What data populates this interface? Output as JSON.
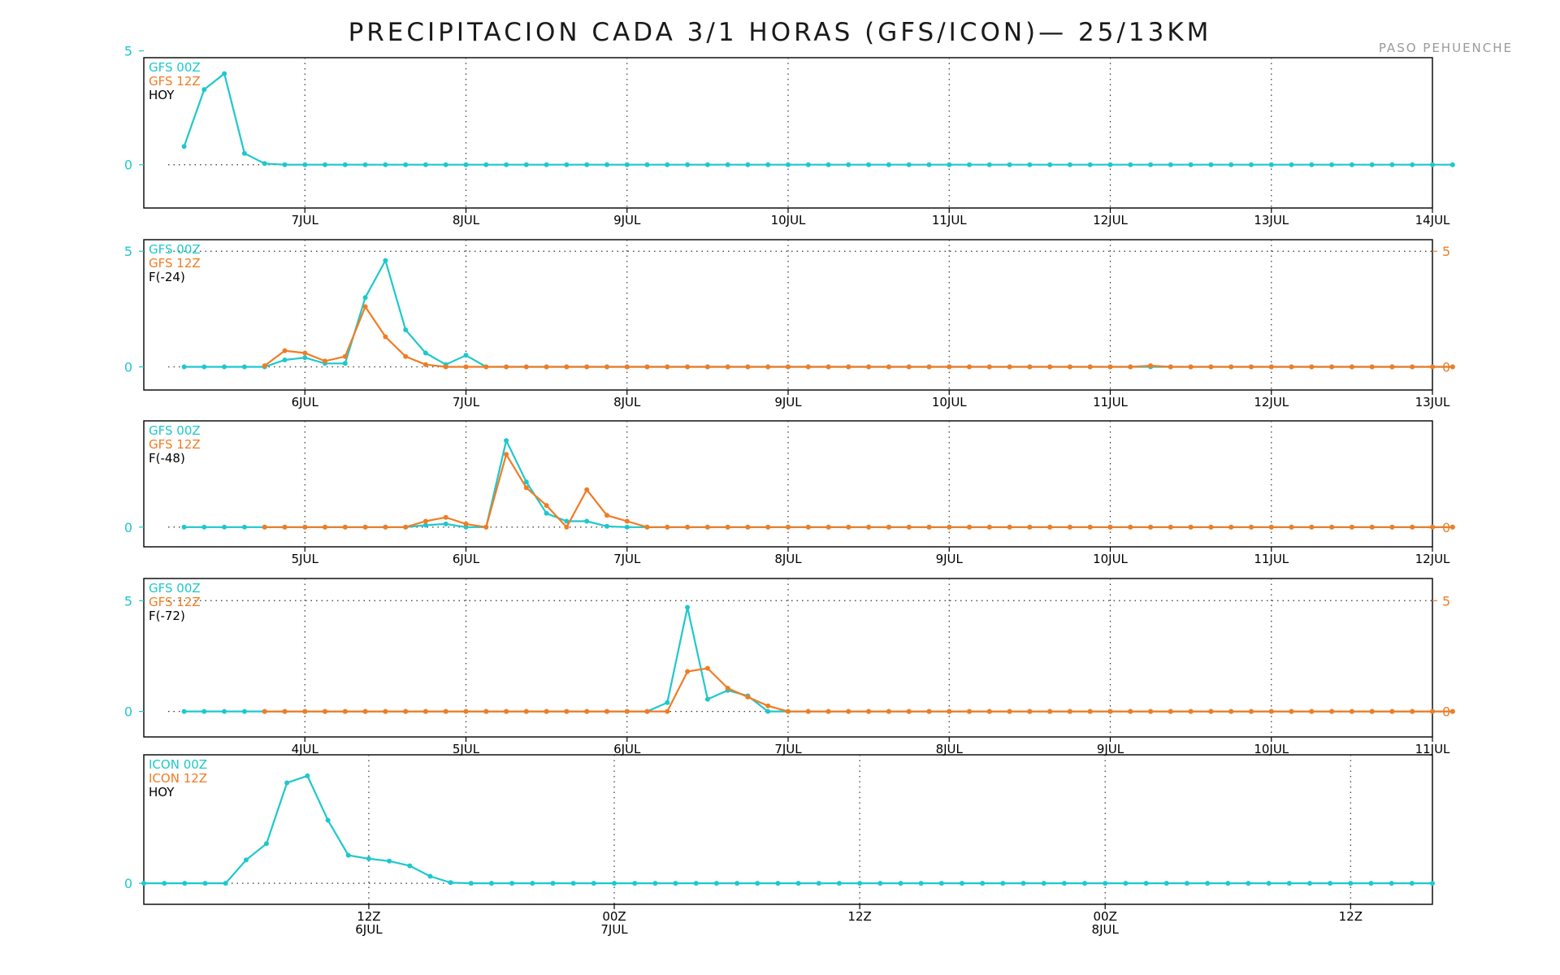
{
  "title": "PRECIPITACION CADA 3/1 HORAS (GFS/ICON)— 25/13KM",
  "location": "PASO PEHUENCHE",
  "colors": {
    "series_00z": "#1ec8cc",
    "series_12z": "#f07c24",
    "text": "#000000",
    "grid": "#000000"
  },
  "chart_data": [
    {
      "type": "line",
      "legend": [
        "GFS 00Z",
        "GFS 12Z",
        "HOY"
      ],
      "x_ticks": [
        "7JUL",
        "8JUL",
        "9JUL",
        "10JUL",
        "11JUL",
        "12JUL",
        "13JUL",
        "14JUL"
      ],
      "x_range_days": [
        6.0,
        14.0
      ],
      "ylim": [
        -1.9,
        4.7
      ],
      "y_ticks_left": [
        "5",
        "0"
      ],
      "y_ticks_right": [],
      "series": [
        {
          "color": "cyan",
          "x_start_day": 6.25,
          "step_hours": 3,
          "values": [
            0.8,
            3.3,
            4.0,
            0.5,
            0.05,
            0,
            0,
            0,
            0,
            0,
            0,
            0,
            0,
            0,
            0,
            0,
            0,
            0,
            0,
            0,
            0,
            0,
            0,
            0,
            0,
            0,
            0,
            0,
            0,
            0,
            0,
            0,
            0,
            0,
            0,
            0,
            0,
            0,
            0,
            0,
            0,
            0,
            0,
            0,
            0,
            0,
            0,
            0,
            0,
            0,
            0,
            0,
            0,
            0,
            0,
            0,
            0,
            0,
            0,
            0,
            0,
            0,
            0,
            0
          ]
        }
      ]
    },
    {
      "type": "line",
      "legend": [
        "GFS 00Z",
        "GFS 12Z",
        "F(-24)"
      ],
      "x_ticks": [
        "6JUL",
        "7JUL",
        "8JUL",
        "9JUL",
        "10JUL",
        "11JUL",
        "12JUL",
        "13JUL"
      ],
      "x_range_days": [
        5.0,
        13.0
      ],
      "ylim": [
        -1.0,
        5.5
      ],
      "y_ticks_left": [
        "5",
        "0"
      ],
      "y_ticks_right": [
        "5",
        "0"
      ],
      "series": [
        {
          "color": "cyan",
          "x_start_day": 5.25,
          "step_hours": 3,
          "values": [
            0,
            0,
            0,
            0,
            0,
            0.3,
            0.4,
            0.15,
            0.15,
            3.0,
            4.6,
            1.6,
            0.6,
            0.1,
            0.5,
            0,
            0,
            0,
            0,
            0,
            0,
            0,
            0,
            0,
            0,
            0,
            0,
            0,
            0,
            0,
            0,
            0,
            0,
            0,
            0,
            0,
            0,
            0,
            0,
            0,
            0,
            0,
            0,
            0,
            0,
            0,
            0,
            0,
            0,
            0,
            0,
            0,
            0,
            0,
            0,
            0,
            0,
            0,
            0,
            0,
            0,
            0,
            0,
            0
          ]
        },
        {
          "color": "orange",
          "x_start_day": 5.75,
          "step_hours": 3,
          "values": [
            0.05,
            0.7,
            0.6,
            0.25,
            0.45,
            2.6,
            1.3,
            0.45,
            0.1,
            0,
            0,
            0,
            0,
            0,
            0,
            0,
            0,
            0,
            0,
            0,
            0,
            0,
            0,
            0,
            0,
            0,
            0,
            0,
            0,
            0,
            0,
            0,
            0,
            0,
            0,
            0,
            0,
            0,
            0,
            0,
            0,
            0,
            0,
            0,
            0.05,
            0,
            0,
            0,
            0,
            0,
            0,
            0,
            0,
            0,
            0,
            0,
            0,
            0,
            0,
            0
          ]
        }
      ]
    },
    {
      "type": "line",
      "legend": [
        "GFS 00Z",
        "GFS 12Z",
        "F(-48)"
      ],
      "x_ticks": [
        "5JUL",
        "6JUL",
        "7JUL",
        "8JUL",
        "9JUL",
        "10JUL",
        "11JUL",
        "12JUL"
      ],
      "x_range_days": [
        4.0,
        12.0
      ],
      "ylim": [
        -0.5,
        2.7
      ],
      "y_ticks_left": [
        "0"
      ],
      "y_ticks_right": [
        "0"
      ],
      "series": [
        {
          "color": "cyan",
          "x_start_day": 4.25,
          "step_hours": 3,
          "values": [
            0,
            0,
            0,
            0,
            0,
            0,
            0,
            0,
            0,
            0,
            0,
            0,
            0.05,
            0.08,
            0,
            0,
            2.2,
            1.15,
            0.35,
            0.15,
            0.15,
            0.02,
            0,
            0,
            0,
            0,
            0,
            0,
            0,
            0,
            0,
            0,
            0,
            0,
            0,
            0,
            0,
            0,
            0,
            0,
            0,
            0,
            0,
            0,
            0,
            0,
            0,
            0,
            0,
            0,
            0,
            0,
            0,
            0,
            0,
            0,
            0,
            0,
            0,
            0,
            0,
            0,
            0,
            0
          ]
        },
        {
          "color": "orange",
          "x_start_day": 4.75,
          "step_hours": 3,
          "values": [
            0,
            0,
            0,
            0,
            0,
            0,
            0,
            0,
            0.15,
            0.25,
            0.08,
            0,
            1.85,
            1.0,
            0.55,
            0,
            0.95,
            0.3,
            0.15,
            0,
            0,
            0,
            0,
            0,
            0,
            0,
            0,
            0,
            0,
            0,
            0,
            0,
            0,
            0,
            0,
            0,
            0,
            0,
            0,
            0,
            0,
            0,
            0,
            0,
            0,
            0,
            0,
            0,
            0,
            0,
            0,
            0,
            0,
            0,
            0,
            0,
            0,
            0,
            0,
            0
          ]
        }
      ]
    },
    {
      "type": "line",
      "legend": [
        "GFS 00Z",
        "GFS 12Z",
        "F(-72)"
      ],
      "x_ticks": [
        "4JUL",
        "5JUL",
        "6JUL",
        "7JUL",
        "8JUL",
        "9JUL",
        "10JUL",
        "11JUL"
      ],
      "x_range_days": [
        3.0,
        11.0
      ],
      "ylim": [
        -1.15,
        6.0
      ],
      "y_ticks_left": [
        "5",
        "0"
      ],
      "y_ticks_right": [
        "5",
        "0"
      ],
      "series": [
        {
          "color": "cyan",
          "x_start_day": 3.25,
          "step_hours": 3,
          "values": [
            0,
            0,
            0,
            0,
            0,
            0,
            0,
            0,
            0,
            0,
            0,
            0,
            0,
            0,
            0,
            0,
            0,
            0,
            0,
            0,
            0,
            0,
            0,
            0,
            0.4,
            4.7,
            0.55,
            0.95,
            0.7,
            0,
            0,
            0,
            0,
            0,
            0,
            0,
            0,
            0,
            0,
            0,
            0,
            0,
            0,
            0,
            0,
            0,
            0,
            0,
            0,
            0,
            0,
            0,
            0,
            0,
            0,
            0,
            0,
            0,
            0,
            0,
            0,
            0,
            0,
            0
          ]
        },
        {
          "color": "orange",
          "x_start_day": 3.75,
          "step_hours": 3,
          "values": [
            0,
            0,
            0,
            0,
            0,
            0,
            0,
            0,
            0,
            0,
            0,
            0,
            0,
            0,
            0,
            0,
            0,
            0,
            0,
            0,
            0,
            1.8,
            1.95,
            1.05,
            0.65,
            0.25,
            0,
            0,
            0,
            0,
            0,
            0,
            0,
            0,
            0,
            0,
            0,
            0,
            0,
            0,
            0,
            0,
            0,
            0,
            0,
            0,
            0,
            0,
            0,
            0,
            0,
            0,
            0,
            0,
            0,
            0,
            0,
            0,
            0,
            0
          ]
        }
      ]
    },
    {
      "type": "line",
      "legend": [
        "ICON 00Z",
        "ICON 12Z",
        "HOY"
      ],
      "x_ticks": [
        {
          "top": "12Z",
          "bottom": "6JUL"
        },
        {
          "top": "00Z",
          "bottom": "7JUL"
        },
        {
          "top": "12Z",
          "bottom": ""
        },
        {
          "top": "00Z",
          "bottom": "8JUL"
        },
        {
          "top": "12Z",
          "bottom": ""
        }
      ],
      "x_tick_hours": [
        12,
        24,
        36,
        48,
        60
      ],
      "x_range_hours": [
        1,
        64
      ],
      "ylim": [
        -0.9,
        5.5
      ],
      "y_ticks_left": [
        "0"
      ],
      "y_ticks_right": [],
      "series": [
        {
          "color": "cyan",
          "x_start_hour": 1,
          "step_hours": 1,
          "values": [
            0,
            0,
            0,
            0,
            0,
            1.0,
            1.7,
            4.3,
            4.6,
            2.7,
            1.2,
            1.05,
            0.95,
            0.75,
            0.3,
            0.03,
            0,
            0,
            0,
            0,
            0,
            0,
            0,
            0,
            0,
            0,
            0,
            0,
            0,
            0,
            0,
            0,
            0,
            0,
            0,
            0,
            0,
            0,
            0,
            0,
            0,
            0,
            0,
            0,
            0,
            0,
            0,
            0,
            0,
            0,
            0,
            0,
            0,
            0,
            0,
            0,
            0,
            0,
            0,
            0,
            0,
            0,
            0,
            0
          ]
        }
      ]
    }
  ]
}
